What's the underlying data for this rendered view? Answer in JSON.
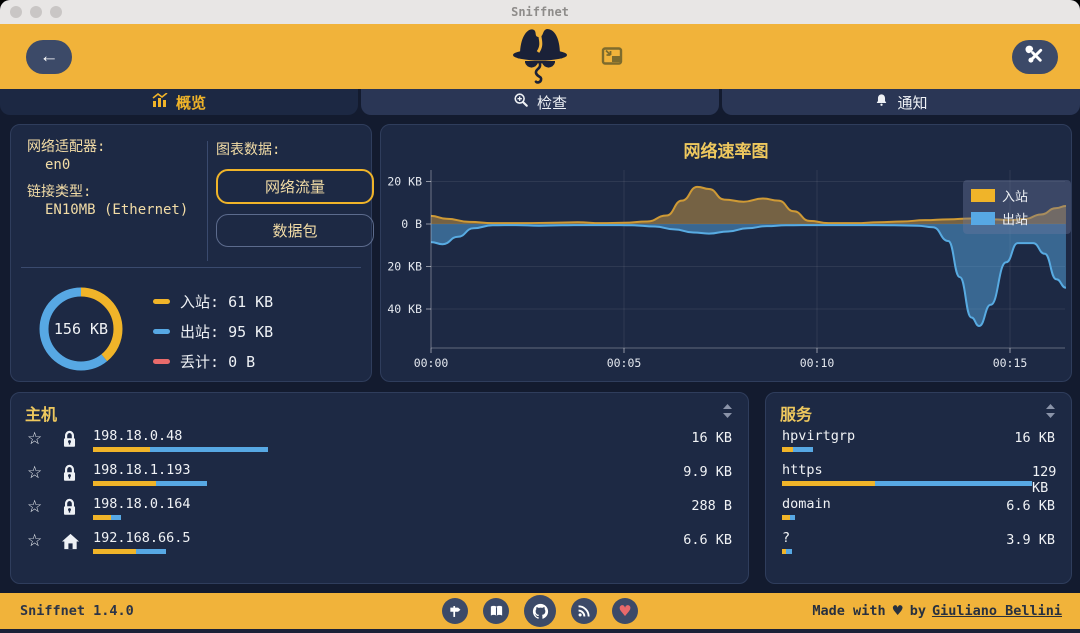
{
  "window": {
    "title": "Sniffnet"
  },
  "colors": {
    "accent_yellow": "#f0b429",
    "accent_blue": "#57a8e4",
    "accent_red": "#e96b6b",
    "panel_bg": "#1d2944",
    "header_bg": "#f1b33a"
  },
  "tabs": [
    {
      "label": "概览",
      "icon": "bar-chart",
      "active": true
    },
    {
      "label": "检查",
      "icon": "magnifier",
      "active": false
    },
    {
      "label": "通知",
      "icon": "bell",
      "active": false
    }
  ],
  "adapter": {
    "label": "网络适配器:",
    "value": "en0",
    "link_label": "链接类型:",
    "link_value": "EN10MB (Ethernet)"
  },
  "chart_source": {
    "label": "图表数据:",
    "options": [
      {
        "label": "网络流量",
        "selected": true
      },
      {
        "label": "数据包",
        "selected": false
      }
    ]
  },
  "summary": {
    "total": "156 KB",
    "items": [
      {
        "label": "入站:",
        "value": "61 KB",
        "kb": 61,
        "color": "#f0b429"
      },
      {
        "label": "出站:",
        "value": "95 KB",
        "kb": 95,
        "color": "#57a8e4"
      },
      {
        "label": "丢计:",
        "value": "0 B",
        "kb": 0,
        "color": "#e96b6b"
      }
    ]
  },
  "chart_data": {
    "type": "area",
    "title": "网络速率图",
    "legend_position": "top-right",
    "x_ticks": [
      {
        "t": 0,
        "label": "00:00"
      },
      {
        "t": 5,
        "label": "00:05"
      },
      {
        "t": 10,
        "label": "00:10"
      },
      {
        "t": 15,
        "label": "00:15"
      }
    ],
    "y_ticks": [
      {
        "v": 20,
        "label": "20 KB"
      },
      {
        "v": 0,
        "label": "0 B"
      },
      {
        "v": -20,
        "label": "20 KB"
      },
      {
        "v": -40,
        "label": "40 KB"
      }
    ],
    "x_range_minutes": [
      0,
      16.45
    ],
    "y_range_kb": [
      -58,
      25
    ],
    "series": [
      {
        "name": "入站",
        "stroke": "#cf9a35",
        "fill": "rgba(240,178,70,0.42)",
        "swatch": "#f0b429",
        "points": [
          [
            0,
            3.8
          ],
          [
            0.4,
            2.5
          ],
          [
            1.0,
            1.0
          ],
          [
            1.6,
            0.4
          ],
          [
            2.4,
            0.4
          ],
          [
            3.2,
            0.6
          ],
          [
            3.8,
            0.8
          ],
          [
            4.4,
            0.4
          ],
          [
            5.0,
            0.6
          ],
          [
            5.6,
            1.2
          ],
          [
            6.1,
            4
          ],
          [
            6.5,
            11
          ],
          [
            6.9,
            17.5
          ],
          [
            7.2,
            16.5
          ],
          [
            7.6,
            11.5
          ],
          [
            8.1,
            10.5
          ],
          [
            8.6,
            12
          ],
          [
            9.0,
            11
          ],
          [
            9.4,
            6
          ],
          [
            9.8,
            1.5
          ],
          [
            10.3,
            0.4
          ],
          [
            11.0,
            0.4
          ],
          [
            11.6,
            0.8
          ],
          [
            12.2,
            1.2
          ],
          [
            12.8,
            1.8
          ],
          [
            13.4,
            2.2
          ],
          [
            14.0,
            2.6
          ],
          [
            14.6,
            2.2
          ],
          [
            15.0,
            1.8
          ],
          [
            15.4,
            2.4
          ],
          [
            15.8,
            4.5
          ],
          [
            16.2,
            7.5
          ],
          [
            16.45,
            8.5
          ]
        ]
      },
      {
        "name": "出站",
        "stroke": "#58abe2",
        "fill": "rgba(86,166,222,0.5)",
        "swatch": "#57a8e4",
        "points": [
          [
            0,
            -8.5
          ],
          [
            0.3,
            -9.5
          ],
          [
            0.7,
            -6
          ],
          [
            1.1,
            -2
          ],
          [
            1.6,
            -0.6
          ],
          [
            2.2,
            -0.5
          ],
          [
            2.8,
            -0.8
          ],
          [
            3.4,
            -0.6
          ],
          [
            4.0,
            -0.5
          ],
          [
            4.6,
            -0.5
          ],
          [
            5.2,
            -0.6
          ],
          [
            5.8,
            -1.2
          ],
          [
            6.3,
            -2.5
          ],
          [
            6.8,
            -4
          ],
          [
            7.2,
            -4.5
          ],
          [
            7.7,
            -3.5
          ],
          [
            8.2,
            -2
          ],
          [
            8.7,
            -1
          ],
          [
            9.2,
            -0.6
          ],
          [
            10,
            -0.5
          ],
          [
            11,
            -0.5
          ],
          [
            12,
            -0.6
          ],
          [
            12.6,
            -0.8
          ],
          [
            13.0,
            -1.5
          ],
          [
            13.4,
            -8
          ],
          [
            13.7,
            -25
          ],
          [
            14.0,
            -44
          ],
          [
            14.2,
            -48
          ],
          [
            14.5,
            -38
          ],
          [
            14.9,
            -18
          ],
          [
            15.2,
            -9
          ],
          [
            15.6,
            -9
          ],
          [
            15.9,
            -14
          ],
          [
            16.2,
            -26
          ],
          [
            16.45,
            -30
          ]
        ]
      }
    ]
  },
  "hosts": {
    "title": "主机",
    "rows": [
      {
        "name": "198.18.0.48",
        "icon": "lock",
        "value": "16 KB",
        "bar_in": 57,
        "bar_out": 118
      },
      {
        "name": "198.18.1.193",
        "icon": "lock",
        "value": "9.9 KB",
        "bar_in": 63,
        "bar_out": 51
      },
      {
        "name": "198.18.0.164",
        "icon": "lock",
        "value": "288 B",
        "bar_in": 18,
        "bar_out": 10
      },
      {
        "name": "192.168.66.5",
        "icon": "home",
        "value": "6.6 KB",
        "bar_in": 43,
        "bar_out": 30
      }
    ]
  },
  "services": {
    "title": "服务",
    "rows": [
      {
        "name": "hpvirtgrp",
        "value": "16 KB",
        "bar_in": 11,
        "bar_out": 20
      },
      {
        "name": "https",
        "value": "129 KB",
        "bar_in": 93,
        "bar_out": 157
      },
      {
        "name": "domain",
        "value": "6.6 KB",
        "bar_in": 8,
        "bar_out": 5
      },
      {
        "name": "?",
        "value": "3.9 KB",
        "bar_in": 4,
        "bar_out": 6
      }
    ]
  },
  "footer": {
    "version": "Sniffnet 1.4.0",
    "made_with": "Made with",
    "heart": "♥",
    "by": "by",
    "author": "Giuliano Bellini",
    "icons": [
      "signpost",
      "book",
      "github",
      "rss",
      "heart"
    ]
  }
}
